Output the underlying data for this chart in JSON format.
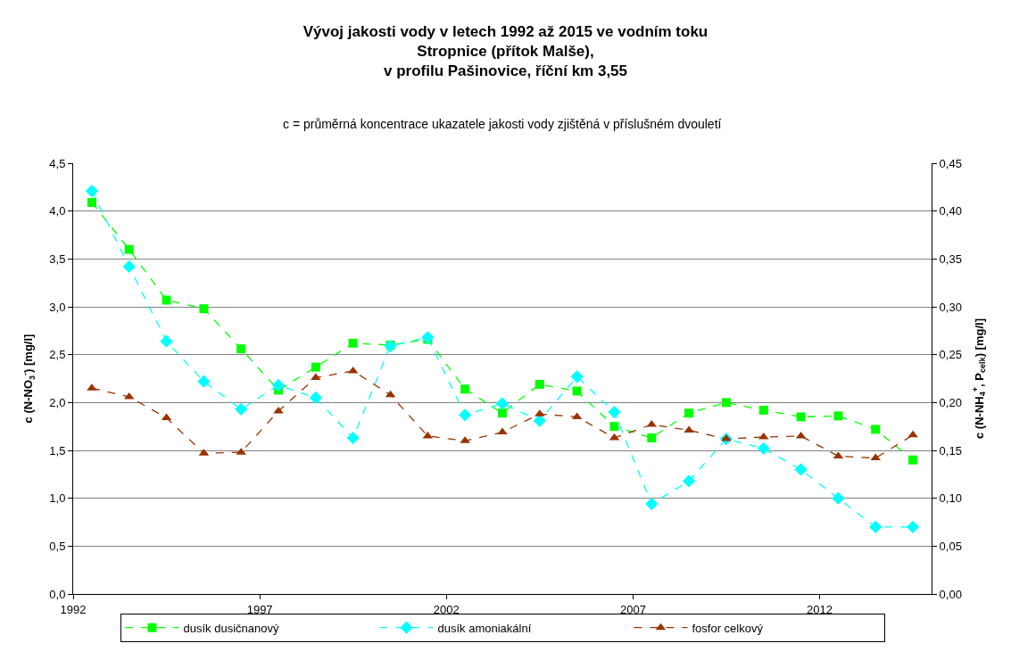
{
  "chart_data": {
    "type": "line",
    "title": "Vývoj jakosti vody v letech 1992 až 2015 ve vodním toku\nStropnice (přítok Malše),\nv profilu Pašinovice, říční km 3,55",
    "subtitle": "c = průměrná koncentrace ukazatele jakosti vody zjištěná v příslušném dvouletí",
    "ylabel": "c (N-NO$_{3}$$^{-}$) [mg/l]",
    "y2label": "c (N-NH$_{4}$$^{+}$, P$_{celk}$) [mg/l]",
    "x": [
      1992.5,
      1993.5,
      1994.5,
      1995.5,
      1996.5,
      1997.5,
      1998.5,
      1999.5,
      2000.5,
      2001.5,
      2002.5,
      2003.5,
      2004.5,
      2005.5,
      2006.5,
      2007.5,
      2008.5,
      2009.5,
      2010.5,
      2011.5,
      2012.5,
      2013.5,
      2014.5
    ],
    "series": [
      {
        "name": "dusík dusičnanový",
        "color": "#00ff00",
        "marker": "square",
        "values": [
          4.09,
          3.6,
          3.07,
          2.98,
          2.56,
          2.13,
          2.37,
          2.62,
          2.6,
          2.66,
          2.14,
          1.89,
          2.19,
          2.12,
          1.75,
          1.63,
          1.89,
          2.0,
          1.92,
          1.85,
          1.86,
          1.72,
          1.4
        ]
      },
      {
        "name": "dusík amoniakální",
        "color": "#00ffff",
        "marker": "diamond",
        "axis": "y2",
        "values": [
          0.421,
          0.342,
          0.264,
          0.222,
          0.193,
          0.218,
          0.205,
          0.163,
          0.259,
          0.268,
          0.187,
          0.199,
          0.181,
          0.227,
          0.19,
          0.094,
          0.118,
          0.162,
          0.152,
          0.13,
          0.1,
          0.07,
          0.07
        ]
      },
      {
        "name": "fosfor celkový",
        "color": "#993300",
        "marker": "triangle",
        "axis": "y2",
        "values": [
          0.215,
          0.206,
          0.184,
          0.147,
          0.148,
          0.191,
          0.226,
          0.233,
          0.208,
          0.165,
          0.16,
          0.169,
          0.188,
          0.185,
          0.163,
          0.177,
          0.171,
          0.162,
          0.164,
          0.165,
          0.144,
          0.142,
          0.166
        ]
      }
    ],
    "line_style": "dashed",
    "xlim": [
      1992,
      2015
    ],
    "xticks": [
      1992,
      1997,
      2002,
      2007,
      2012
    ],
    "ylim": [
      0,
      4.5
    ],
    "yticks": [
      {
        "value": 0,
        "label": "0,0"
      },
      {
        "value": 0.5,
        "label": "0,5"
      },
      {
        "value": 1,
        "label": "1,0"
      },
      {
        "value": 1.5,
        "label": "1,5"
      },
      {
        "value": 2,
        "label": "2,0"
      },
      {
        "value": 2.5,
        "label": "2,5"
      },
      {
        "value": 3,
        "label": "3,0"
      },
      {
        "value": 3.5,
        "label": "3,5"
      },
      {
        "value": 4,
        "label": "4,0"
      },
      {
        "value": 4.5,
        "label": "4,5"
      }
    ],
    "y2lim": [
      0,
      0.45
    ],
    "y2ticks": [
      {
        "value": 0,
        "label": "0,00"
      },
      {
        "value": 0.05,
        "label": "0,05"
      },
      {
        "value": 0.1,
        "label": "0,10"
      },
      {
        "value": 0.15,
        "label": "0,15"
      },
      {
        "value": 0.2,
        "label": "0,20"
      },
      {
        "value": 0.25,
        "label": "0,25"
      },
      {
        "value": 0.3,
        "label": "0,30"
      },
      {
        "value": 0.35,
        "label": "0,35"
      },
      {
        "value": 0.4,
        "label": "0,40"
      },
      {
        "value": 0.45,
        "label": "0,45"
      }
    ],
    "grid": "y",
    "legend": "bottom"
  }
}
